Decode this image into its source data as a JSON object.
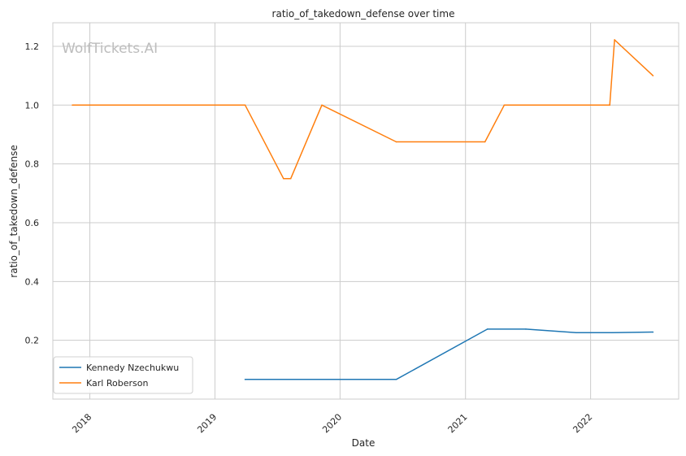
{
  "chart_data": {
    "type": "line",
    "title": "ratio_of_takedown_defense over time",
    "xlabel": "Date",
    "ylabel": "ratio_of_takedown_defense",
    "watermark": "WolfTickets.AI",
    "xlim": [
      "2017-09-15",
      "2022-09-15"
    ],
    "ylim": [
      0.0,
      1.28
    ],
    "x_ticks": [
      {
        "date": "2018-01-01",
        "label": "2018"
      },
      {
        "date": "2019-01-01",
        "label": "2019"
      },
      {
        "date": "2020-01-01",
        "label": "2020"
      },
      {
        "date": "2021-01-01",
        "label": "2021"
      },
      {
        "date": "2022-01-01",
        "label": "2022"
      }
    ],
    "y_ticks": [
      0.2,
      0.4,
      0.6,
      0.8,
      1.0,
      1.2
    ],
    "y_tick_labels": [
      "0.2",
      "0.4",
      "0.6",
      "0.8",
      "1.0",
      "1.2"
    ],
    "grid": true,
    "legend_position": "lower-left",
    "series": [
      {
        "name": "Kennedy Nzechukwu",
        "color": "#1f77b4",
        "points": [
          {
            "x": "2019-03-30",
            "y": 0.067
          },
          {
            "x": "2020-06-13",
            "y": 0.067
          },
          {
            "x": "2021-03-06",
            "y": 0.238
          },
          {
            "x": "2021-06-26",
            "y": 0.238
          },
          {
            "x": "2021-11-20",
            "y": 0.226
          },
          {
            "x": "2022-03-05",
            "y": 0.226
          },
          {
            "x": "2022-07-02",
            "y": 0.228
          }
        ]
      },
      {
        "name": "Karl Roberson",
        "color": "#ff7f0e",
        "points": [
          {
            "x": "2017-11-11",
            "y": 1.0
          },
          {
            "x": "2019-03-30",
            "y": 1.0
          },
          {
            "x": "2019-07-20",
            "y": 0.75
          },
          {
            "x": "2019-08-10",
            "y": 0.75
          },
          {
            "x": "2019-11-09",
            "y": 1.0
          },
          {
            "x": "2020-06-13",
            "y": 0.875
          },
          {
            "x": "2021-02-27",
            "y": 0.875
          },
          {
            "x": "2021-04-24",
            "y": 1.0
          },
          {
            "x": "2022-02-26",
            "y": 1.0
          },
          {
            "x": "2022-03-12",
            "y": 1.222
          },
          {
            "x": "2022-07-02",
            "y": 1.1
          }
        ]
      }
    ]
  }
}
